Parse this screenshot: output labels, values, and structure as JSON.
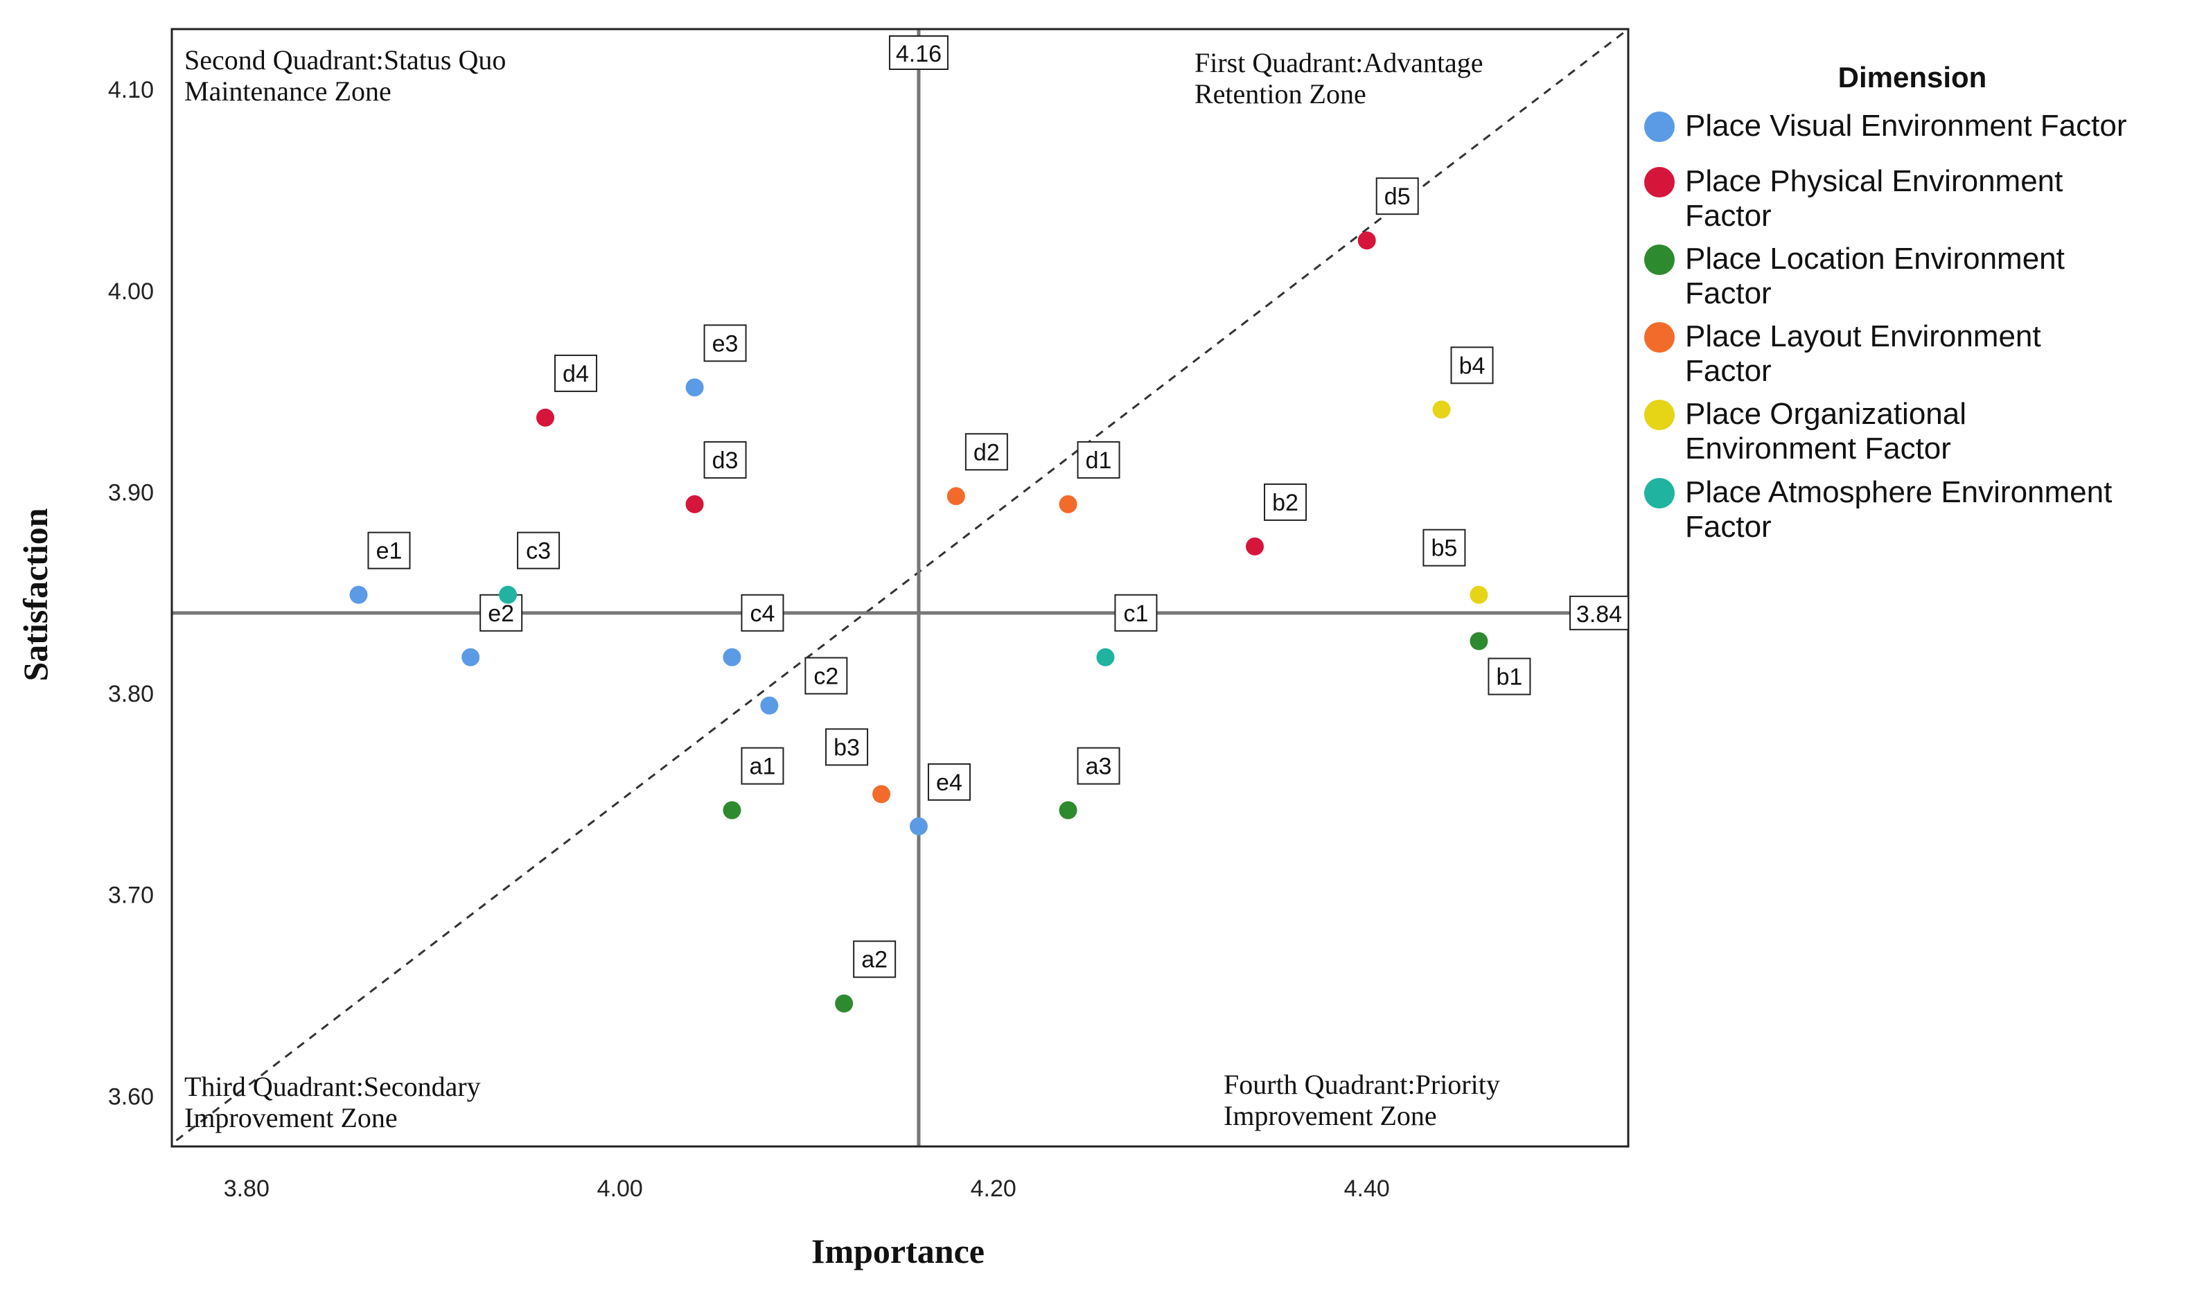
{
  "chart_data": {
    "type": "scatter",
    "xlabel": "Importance",
    "ylabel": "Satisfaction",
    "xlim": [
      3.76,
      4.54
    ],
    "ylim": [
      3.575,
      4.13
    ],
    "x_ticks": [
      "3.80",
      "4.00",
      "4.20",
      "4.40"
    ],
    "x_tick_values": [
      3.8,
      4.0,
      4.2,
      4.4
    ],
    "y_ticks": [
      "3.60",
      "3.70",
      "3.80",
      "3.90",
      "4.00",
      "4.10"
    ],
    "y_tick_values": [
      3.6,
      3.7,
      3.8,
      3.9,
      4.0,
      4.1
    ],
    "ref_x": 4.16,
    "ref_x_label": "4.16",
    "ref_y": 3.84,
    "ref_y_label": "3.84",
    "diagonal": [
      [
        3.73,
        3.555
      ],
      [
        4.54,
        4.13
      ]
    ],
    "quadrants": [
      {
        "line1": "Second Quadrant:Status Quo",
        "line2": "Maintenance Zone",
        "corner": "top-left"
      },
      {
        "line1": "First Quadrant:Advantage",
        "line2": "Retention Zone",
        "corner": "top-right"
      },
      {
        "line1": "Third Quadrant:Secondary",
        "line2": "Improvement Zone",
        "corner": "bottom-left"
      },
      {
        "line1": "Fourth Quadrant:Priority",
        "line2": "Improvement Zone",
        "corner": "bottom-right"
      }
    ],
    "legend_title": "Dimension",
    "legend_position": "right",
    "series": [
      {
        "name": "Place Visual Environment Factor",
        "lines": [
          "Place Visual Environment Factor"
        ],
        "color": "#5b9be6",
        "points": [
          {
            "label": "e1",
            "x": 3.86,
            "y": 3.849,
            "pos": "upper-right"
          },
          {
            "label": "e2",
            "x": 3.92,
            "y": 3.818,
            "pos": "upper-right"
          },
          {
            "label": "e3",
            "x": 4.04,
            "y": 3.952,
            "pos": "upper-right"
          },
          {
            "label": "c4",
            "x": 4.06,
            "y": 3.818,
            "pos": "upper-right"
          },
          {
            "label": "c2",
            "x": 4.08,
            "y": 3.794,
            "pos": "right"
          },
          {
            "label": "e4",
            "x": 4.16,
            "y": 3.734,
            "pos": "upper-right"
          }
        ]
      },
      {
        "name": "Place Physical Environment Factor",
        "lines": [
          "Place Physical Environment",
          "Factor"
        ],
        "color": "#d6153a",
        "points": [
          {
            "label": "d4",
            "x": 3.96,
            "y": 3.937,
            "pos": "upper-right"
          },
          {
            "label": "d3",
            "x": 4.04,
            "y": 3.894,
            "pos": "upper-right"
          },
          {
            "label": "b2",
            "x": 4.34,
            "y": 3.873,
            "pos": "upper-right"
          },
          {
            "label": "d5",
            "x": 4.4,
            "y": 4.025,
            "pos": "upper-right"
          }
        ]
      },
      {
        "name": "Place Location Environment Factor",
        "lines": [
          "Place Location Environment",
          "Factor"
        ],
        "color": "#2e8a2e",
        "points": [
          {
            "label": "a1",
            "x": 4.06,
            "y": 3.742,
            "pos": "upper-right"
          },
          {
            "label": "a2",
            "x": 4.12,
            "y": 3.646,
            "pos": "upper-right"
          },
          {
            "label": "a3",
            "x": 4.24,
            "y": 3.742,
            "pos": "upper-right"
          },
          {
            "label": "b1",
            "x": 4.46,
            "y": 3.826,
            "pos": "lower-right"
          }
        ]
      },
      {
        "name": "Place Layout Environment Factor",
        "lines": [
          "Place Layout Environment",
          "Factor"
        ],
        "color": "#f26b2a",
        "points": [
          {
            "label": "d2",
            "x": 4.18,
            "y": 3.898,
            "pos": "upper-right"
          },
          {
            "label": "d1",
            "x": 4.24,
            "y": 3.894,
            "pos": "upper-right"
          },
          {
            "label": "b3",
            "x": 4.14,
            "y": 3.75,
            "pos": "upper-left"
          }
        ]
      },
      {
        "name": "Place Organizational Environment Factor",
        "lines": [
          "Place Organizational",
          "Environment Factor"
        ],
        "color": "#e6d417",
        "points": [
          {
            "label": "b4",
            "x": 4.44,
            "y": 3.941,
            "pos": "upper-right"
          },
          {
            "label": "b5",
            "x": 4.46,
            "y": 3.849,
            "pos": "upper-left"
          }
        ]
      },
      {
        "name": "Place Atmosphere Environment Factor",
        "lines": [
          "Place Atmosphere Environment",
          "Factor"
        ],
        "color": "#1fb3a0",
        "points": [
          {
            "label": "c3",
            "x": 3.94,
            "y": 3.849,
            "pos": "upper-right"
          },
          {
            "label": "c1",
            "x": 4.26,
            "y": 3.818,
            "pos": "upper-right"
          }
        ]
      }
    ]
  }
}
